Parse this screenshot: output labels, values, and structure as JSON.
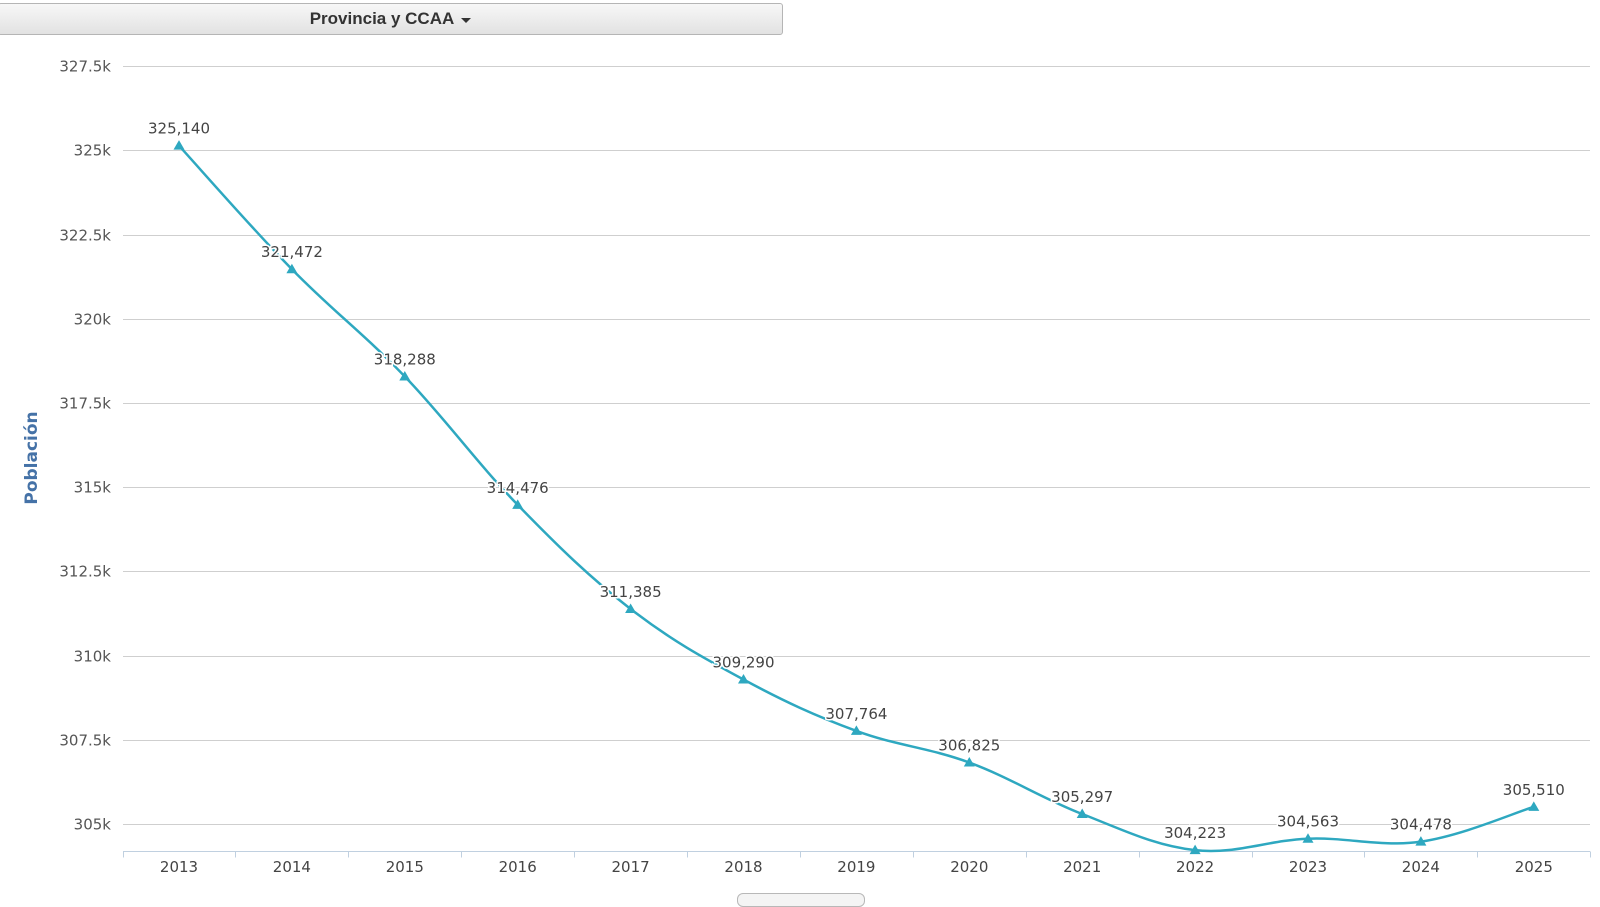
{
  "header": {
    "dropdown_label": "Provincia y CCAA"
  },
  "chart_data": {
    "type": "line",
    "ylabel": "Población",
    "xlabel": "",
    "ylim": [
      304000,
      327500
    ],
    "y_ticks": [
      305000,
      307500,
      310000,
      312500,
      315000,
      317500,
      320000,
      322500,
      325000,
      327500
    ],
    "y_tick_labels": [
      "305k",
      "307.5k",
      "310k",
      "312.5k",
      "315k",
      "317.5k",
      "320k",
      "322.5k",
      "325k",
      "327.5k"
    ],
    "categories": [
      "2013",
      "2014",
      "2015",
      "2016",
      "2017",
      "2018",
      "2019",
      "2020",
      "2021",
      "2022",
      "2023",
      "2024",
      "2025"
    ],
    "series": [
      {
        "values": [
          325140,
          321472,
          318288,
          314476,
          311385,
          309290,
          307764,
          306825,
          305297,
          304223,
          304563,
          304478,
          305510
        ],
        "value_labels": [
          "325,140",
          "321,472",
          "318,288",
          "314,476",
          "311,385",
          "309,290",
          "307,764",
          "306,825",
          "305,297",
          "304,223",
          "304,563",
          "304,478",
          "305,510"
        ],
        "color": "#2ea8c0",
        "marker": "triangle"
      }
    ],
    "grid": true,
    "legend": "none"
  }
}
